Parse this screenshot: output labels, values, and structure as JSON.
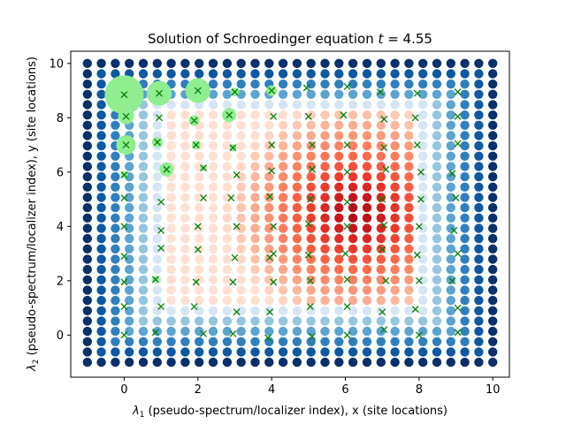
{
  "chart_data": {
    "type": "scatter",
    "title": "Solution of Schroedinger equation",
    "title_time_symbol": "t",
    "title_time_value": "= 4.55",
    "xlabel_symbol": "λ",
    "xlabel_sub": "1",
    "xlabel_text": " (pseudo-spectrum/localizer index), x (site locations)",
    "ylabel_symbol": "λ",
    "ylabel_sub": "2",
    "ylabel_text": " (pseudo-spectrum/localizer index), y (site locations)",
    "xlim": [
      -1.45,
      10.45
    ],
    "ylim": [
      -1.55,
      10.45
    ],
    "x_ticks": [
      0,
      2,
      4,
      6,
      8,
      10
    ],
    "y_ticks": [
      0,
      2,
      4,
      6,
      8,
      10
    ],
    "grid": false,
    "legend": "none",
    "spectrum_grid": {
      "x_start": -1,
      "x_end": 10,
      "x_count": 30,
      "y_start": -1,
      "y_end": 10,
      "y_count": 30,
      "inner_region_x": [
        1.2,
        7.8
      ],
      "inner_region_y": [
        1.2,
        8.2
      ],
      "peak_center": [
        6.3,
        4.5
      ],
      "outer_colormap": "Blues",
      "inner_colormap": "Reds"
    },
    "sites": [
      [
        0.0,
        0.0
      ],
      [
        0.0,
        1.05
      ],
      [
        0.0,
        1.95
      ],
      [
        0.0,
        2.9
      ],
      [
        0.0,
        4.0
      ],
      [
        0.0,
        5.05
      ],
      [
        0.0,
        5.9
      ],
      [
        0.05,
        7.0
      ],
      [
        0.05,
        8.05
      ],
      [
        0.0,
        8.85
      ],
      [
        0.85,
        0.1
      ],
      [
        1.0,
        1.05
      ],
      [
        0.85,
        2.05
      ],
      [
        1.0,
        3.2
      ],
      [
        1.0,
        3.85
      ],
      [
        1.0,
        4.9
      ],
      [
        1.15,
        6.1
      ],
      [
        0.9,
        7.1
      ],
      [
        0.95,
        8.0
      ],
      [
        0.95,
        8.9
      ],
      [
        1.9,
        1.05
      ],
      [
        1.95,
        1.95
      ],
      [
        2.0,
        3.15
      ],
      [
        2.0,
        4.0
      ],
      [
        2.15,
        5.05
      ],
      [
        2.15,
        6.15
      ],
      [
        1.95,
        7.0
      ],
      [
        1.9,
        7.9
      ],
      [
        2.0,
        9.0
      ],
      [
        2.15,
        0.05
      ],
      [
        3.05,
        0.85
      ],
      [
        2.95,
        1.95
      ],
      [
        3.0,
        2.85
      ],
      [
        3.05,
        4.0
      ],
      [
        2.9,
        5.05
      ],
      [
        3.05,
        5.9
      ],
      [
        2.95,
        6.9
      ],
      [
        2.85,
        8.1
      ],
      [
        3.0,
        8.95
      ],
      [
        2.95,
        0.05
      ],
      [
        3.95,
        0.85
      ],
      [
        4.05,
        1.95
      ],
      [
        3.95,
        2.85
      ],
      [
        4.05,
        3.0
      ],
      [
        4.05,
        4.0
      ],
      [
        3.95,
        5.1
      ],
      [
        4.0,
        6.05
      ],
      [
        4.0,
        7.0
      ],
      [
        4.05,
        8.05
      ],
      [
        4.0,
        9.0
      ],
      [
        3.9,
        -0.1
      ],
      [
        5.05,
        1.05
      ],
      [
        5.05,
        2.0
      ],
      [
        5.0,
        2.95
      ],
      [
        5.0,
        4.1
      ],
      [
        5.05,
        5.0
      ],
      [
        5.1,
        6.1
      ],
      [
        5.1,
        7.0
      ],
      [
        5.0,
        8.05
      ],
      [
        4.95,
        9.1
      ],
      [
        5.1,
        -0.05
      ],
      [
        6.05,
        1.05
      ],
      [
        6.05,
        2.05
      ],
      [
        6.0,
        3.0
      ],
      [
        6.05,
        4.0
      ],
      [
        6.05,
        4.9
      ],
      [
        6.05,
        6.0
      ],
      [
        6.05,
        7.0
      ],
      [
        5.95,
        8.1
      ],
      [
        6.05,
        9.15
      ],
      [
        6.05,
        0.0
      ],
      [
        7.0,
        0.85
      ],
      [
        7.1,
        2.0
      ],
      [
        7.0,
        3.15
      ],
      [
        7.05,
        4.05
      ],
      [
        7.0,
        5.0
      ],
      [
        7.1,
        6.1
      ],
      [
        7.05,
        6.9
      ],
      [
        7.05,
        7.95
      ],
      [
        6.95,
        8.95
      ],
      [
        7.05,
        0.2
      ],
      [
        7.9,
        0.95
      ],
      [
        8.0,
        2.0
      ],
      [
        7.95,
        2.95
      ],
      [
        8.0,
        4.0
      ],
      [
        8.05,
        5.0
      ],
      [
        8.05,
        6.0
      ],
      [
        7.95,
        7.0
      ],
      [
        7.9,
        8.0
      ],
      [
        7.95,
        8.9
      ],
      [
        8.0,
        0.0
      ],
      [
        9.05,
        0.1
      ],
      [
        9.05,
        1.0
      ],
      [
        8.9,
        2.0
      ],
      [
        9.05,
        3.0
      ],
      [
        8.95,
        3.85
      ],
      [
        9.0,
        5.05
      ],
      [
        8.9,
        5.95
      ],
      [
        9.05,
        7.05
      ],
      [
        9.05,
        8.05
      ],
      [
        9.05,
        8.95
      ]
    ],
    "amplitude_markers": [
      {
        "x": 0.0,
        "y": 8.85,
        "size": 22
      },
      {
        "x": 0.95,
        "y": 8.9,
        "size": 14
      },
      {
        "x": 2.0,
        "y": 9.0,
        "size": 14
      },
      {
        "x": 0.05,
        "y": 7.0,
        "size": 11
      },
      {
        "x": 0.05,
        "y": 8.05,
        "size": 9
      },
      {
        "x": 2.85,
        "y": 8.1,
        "size": 8
      },
      {
        "x": 1.15,
        "y": 6.1,
        "size": 8
      },
      {
        "x": 0.9,
        "y": 7.1,
        "size": 6
      },
      {
        "x": 1.9,
        "y": 7.9,
        "size": 6
      },
      {
        "x": 1.95,
        "y": 7.0,
        "size": 5
      },
      {
        "x": 4.0,
        "y": 9.0,
        "size": 6
      },
      {
        "x": 3.0,
        "y": 8.95,
        "size": 5
      },
      {
        "x": 0.85,
        "y": 2.05,
        "size": 4
      },
      {
        "x": 2.95,
        "y": 6.9,
        "size": 4
      },
      {
        "x": 0.0,
        "y": 5.9,
        "size": 4
      },
      {
        "x": 2.15,
        "y": 6.15,
        "size": 3.5
      }
    ],
    "colors": {
      "site_marker": "#007f00",
      "amplitude_marker": "#90ee90",
      "axes": "#000000"
    }
  }
}
